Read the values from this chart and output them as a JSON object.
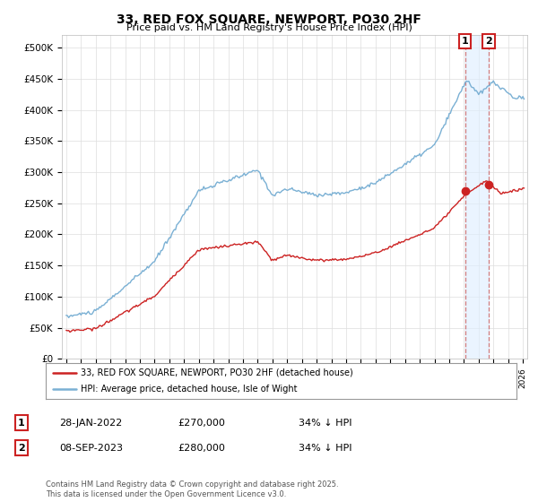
{
  "title": "33, RED FOX SQUARE, NEWPORT, PO30 2HF",
  "subtitle": "Price paid vs. HM Land Registry's House Price Index (HPI)",
  "ylabel_ticks": [
    "£0",
    "£50K",
    "£100K",
    "£150K",
    "£200K",
    "£250K",
    "£300K",
    "£350K",
    "£400K",
    "£450K",
    "£500K"
  ],
  "ytick_vals": [
    0,
    50000,
    100000,
    150000,
    200000,
    250000,
    300000,
    350000,
    400000,
    450000,
    500000
  ],
  "ylim": [
    0,
    520000
  ],
  "xlim_start": 1994.7,
  "xlim_end": 2026.3,
  "hpi_color": "#7ab0d4",
  "property_color": "#cc2222",
  "annotation_box_color": "#cc2222",
  "dashed_line_color": "#cc6666",
  "shade_color": "#ddeeff",
  "sale1_date": 2022.08,
  "sale1_price": 270000,
  "sale1_label": "1",
  "sale2_date": 2023.69,
  "sale2_price": 280000,
  "sale2_label": "2",
  "legend_property": "33, RED FOX SQUARE, NEWPORT, PO30 2HF (detached house)",
  "legend_hpi": "HPI: Average price, detached house, Isle of Wight",
  "table_row1": [
    "1",
    "28-JAN-2022",
    "£270,000",
    "34% ↓ HPI"
  ],
  "table_row2": [
    "2",
    "08-SEP-2023",
    "£280,000",
    "34% ↓ HPI"
  ],
  "footer": "Contains HM Land Registry data © Crown copyright and database right 2025.\nThis data is licensed under the Open Government Licence v3.0.",
  "background_color": "#ffffff",
  "grid_color": "#dddddd"
}
